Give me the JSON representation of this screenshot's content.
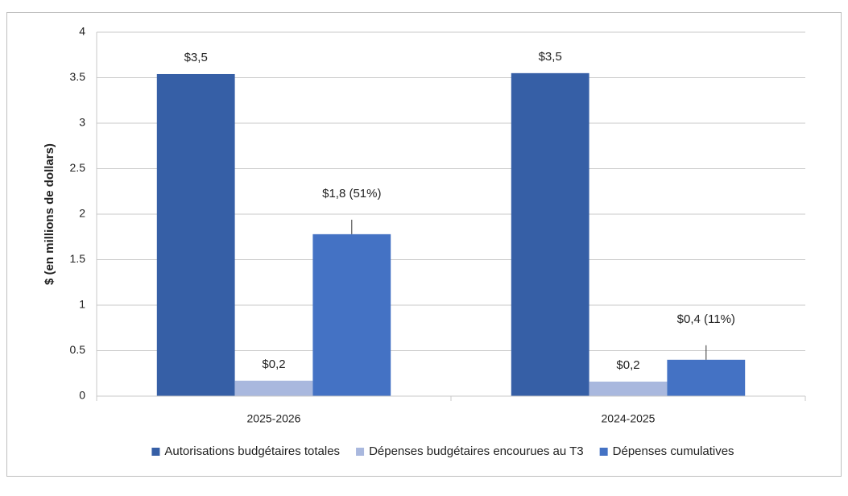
{
  "chart_data": {
    "type": "bar",
    "y_label": "$ (en millions de dollars)",
    "categories": [
      "2025-2026",
      "2024-2025"
    ],
    "series": [
      {
        "name": "Autorisations budgétaires totales",
        "color": "#365fa6",
        "values": [
          3.54,
          3.55
        ],
        "value_labels": [
          "$3,5",
          "$3,5"
        ]
      },
      {
        "name": "Dépenses budgétaires encourues au T3",
        "color": "#a9b8de",
        "values": [
          0.17,
          0.16
        ],
        "value_labels": [
          "$0,2",
          "$0,2"
        ]
      },
      {
        "name": "Dépenses cumulatives",
        "color": "#4472c4",
        "values": [
          1.78,
          0.4
        ],
        "value_labels": [
          "$1,8 (51%)",
          "$0,4 (11%)"
        ]
      }
    ],
    "ylim": [
      0,
      4
    ],
    "yticks": [
      0,
      0.5,
      1,
      1.5,
      2,
      2.5,
      3,
      3.5,
      4
    ],
    "grid": true,
    "legend": "bottom"
  }
}
